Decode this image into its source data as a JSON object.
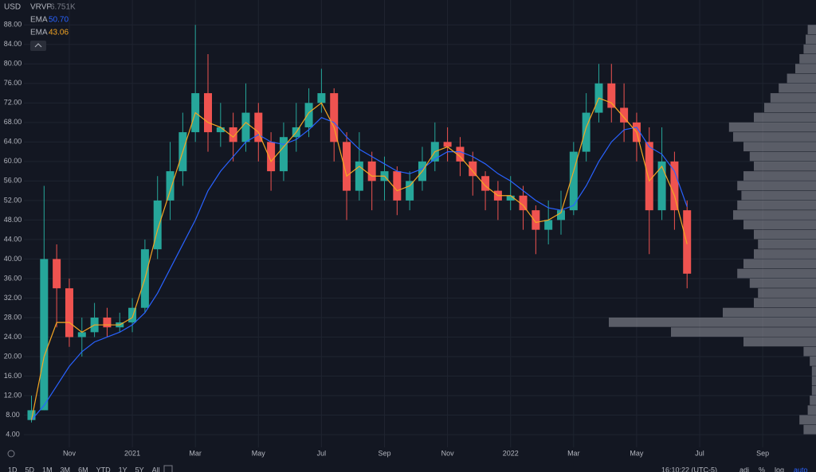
{
  "chart_data": {
    "type": "candlestick",
    "currency_label": "USD",
    "grid": true,
    "log_scale": false,
    "up_color": "#26a69a",
    "down_color": "#ef5350",
    "indicator_legend": {
      "name": "VRVP",
      "value_label": "6.751K"
    },
    "xlim": [
      0.56,
      25.69
    ],
    "xticks": [
      {
        "value": 2,
        "label": "Nov"
      },
      {
        "value": 4,
        "label": "2021"
      },
      {
        "value": 6,
        "label": "Mar"
      },
      {
        "value": 8,
        "label": "May"
      },
      {
        "value": 10,
        "label": "Jul"
      },
      {
        "value": 12,
        "label": "Sep"
      },
      {
        "value": 14,
        "label": "Nov"
      },
      {
        "value": 16,
        "label": "2022"
      },
      {
        "value": 18,
        "label": "Mar"
      },
      {
        "value": 20,
        "label": "May"
      },
      {
        "value": 22,
        "label": "Jul"
      },
      {
        "value": 24,
        "label": "Sep"
      }
    ],
    "ylim": [
      1.4,
      93.1
    ],
    "yticks": [
      {
        "value": 4,
        "label": "4.00"
      },
      {
        "value": 8,
        "label": "8.00"
      },
      {
        "value": 12,
        "label": "12.00"
      },
      {
        "value": 16,
        "label": "16.00"
      },
      {
        "value": 20,
        "label": "20.00"
      },
      {
        "value": 24,
        "label": "24.00"
      },
      {
        "value": 28,
        "label": "28.00"
      },
      {
        "value": 32,
        "label": "32.00"
      },
      {
        "value": 36,
        "label": "36.00"
      },
      {
        "value": 40,
        "label": "40.00"
      },
      {
        "value": 44,
        "label": "44.00"
      },
      {
        "value": 48,
        "label": "48.00"
      },
      {
        "value": 52,
        "label": "52.00"
      },
      {
        "value": 56,
        "label": "56.00"
      },
      {
        "value": 60,
        "label": "60.00"
      },
      {
        "value": 64,
        "label": "64.00"
      },
      {
        "value": 68,
        "label": "68.00"
      },
      {
        "value": 72,
        "label": "72.00"
      },
      {
        "value": 76,
        "label": "76.00"
      },
      {
        "value": 80,
        "label": "80.00"
      },
      {
        "value": 84,
        "label": "84.00"
      },
      {
        "value": 88,
        "label": "88.00"
      }
    ],
    "x": [
      0.8,
      1.2,
      1.6,
      2.0,
      2.4,
      2.8,
      3.2,
      3.6,
      4.0,
      4.4,
      4.8,
      5.2,
      5.6,
      6.0,
      6.4,
      6.8,
      7.2,
      7.6,
      8.0,
      8.4,
      8.8,
      9.2,
      9.6,
      10.0,
      10.4,
      10.8,
      11.2,
      11.6,
      12.0,
      12.4,
      12.8,
      13.2,
      13.6,
      14.0,
      14.4,
      14.8,
      15.2,
      15.6,
      16.0,
      16.4,
      16.8,
      17.2,
      17.6,
      18.0,
      18.4,
      18.8,
      19.2,
      19.6,
      20.0,
      20.4,
      20.8,
      21.2,
      21.6
    ],
    "open": [
      7,
      9,
      40,
      34,
      24,
      25,
      28,
      26,
      27,
      30,
      42,
      52,
      58,
      66,
      74,
      66,
      67,
      64,
      70,
      64,
      58,
      65,
      67,
      72,
      74,
      64,
      54,
      60,
      56,
      58,
      52,
      56,
      60,
      64,
      63,
      60,
      57,
      54,
      52,
      53,
      50,
      46,
      48,
      50,
      62,
      70,
      76,
      71,
      68,
      64,
      50,
      60,
      50
    ],
    "high": [
      12,
      55,
      43,
      36,
      28,
      31,
      30,
      29,
      32,
      44,
      57,
      64,
      70,
      88,
      82,
      72,
      70,
      76,
      72,
      66,
      68,
      72,
      75,
      79,
      75,
      66,
      66,
      62,
      61,
      59,
      58,
      63,
      68,
      67,
      65,
      62,
      58,
      56,
      57,
      55,
      51,
      52,
      54,
      64,
      74,
      80,
      80,
      76,
      70,
      67,
      67,
      62,
      52
    ],
    "low": [
      6.5,
      9,
      26,
      22,
      20,
      24,
      24,
      25,
      25,
      29,
      40,
      48,
      55,
      64,
      62,
      63,
      60,
      62,
      60,
      54,
      56,
      62,
      65,
      70,
      60,
      48,
      52,
      50,
      52,
      49,
      50,
      54,
      58,
      60,
      57,
      53,
      50,
      48,
      50,
      46,
      41,
      43,
      45,
      49,
      60,
      68,
      68,
      64,
      60,
      41,
      48,
      46,
      34
    ],
    "close": [
      9,
      40,
      34,
      24,
      25,
      28,
      26,
      27,
      30,
      42,
      52,
      58,
      66,
      74,
      66,
      67,
      64,
      70,
      64,
      58,
      65,
      67,
      72,
      74,
      64,
      54,
      60,
      56,
      58,
      52,
      56,
      60,
      64,
      63,
      60,
      57,
      54,
      52,
      53,
      50,
      46,
      48,
      50,
      62,
      70,
      76,
      71,
      68,
      64,
      50,
      60,
      50,
      37
    ],
    "series": [
      {
        "name": "EMA",
        "color": "#2962ff",
        "last_value_label": "50.70",
        "values": [
          7,
          10,
          14,
          18,
          21,
          23,
          24,
          25,
          26.5,
          29,
          33,
          38,
          43,
          48,
          54,
          58,
          61,
          64,
          65.5,
          64,
          63.5,
          64.5,
          66.5,
          69,
          68,
          65,
          62.5,
          61,
          59.5,
          58,
          57.5,
          58.5,
          60.5,
          62,
          62,
          61,
          59.5,
          57.5,
          56,
          54,
          52,
          50.5,
          50,
          51,
          55,
          60,
          64,
          66.5,
          67,
          63,
          61.5,
          58,
          50.7
        ]
      },
      {
        "name": "EMA",
        "color": "#f5a623",
        "last_value_label": "43.06",
        "values": [
          7,
          20,
          27,
          27,
          25,
          26.5,
          26.5,
          26.5,
          28,
          36,
          46,
          54,
          62,
          70,
          68,
          67,
          65,
          68,
          66,
          60,
          63,
          66,
          70,
          72,
          67,
          57,
          59,
          57,
          57,
          54,
          55,
          58,
          62,
          63,
          61,
          58,
          55,
          53,
          53,
          51,
          47.5,
          48,
          49.5,
          58,
          67,
          73,
          72,
          69,
          66,
          56,
          59,
          53,
          43.06
        ]
      }
    ],
    "profile": {
      "color": "#9598a1",
      "xlim": [
        0,
        100
      ],
      "bins": [
        4,
        6,
        8,
        10,
        12,
        14,
        16,
        18,
        20,
        22,
        24,
        26,
        28,
        30,
        32,
        34,
        36,
        38,
        40,
        42,
        44,
        46,
        48,
        50,
        52,
        54,
        56,
        58,
        60,
        62,
        64,
        66,
        68,
        70,
        72,
        74,
        76,
        78,
        80,
        82,
        84,
        86,
        88
      ],
      "volumes": [
        6,
        8,
        4,
        3,
        2,
        2,
        2,
        3,
        6,
        35,
        70,
        100,
        45,
        30,
        28,
        32,
        38,
        35,
        30,
        28,
        30,
        35,
        40,
        38,
        36,
        38,
        35,
        30,
        32,
        35,
        40,
        42,
        30,
        25,
        22,
        18,
        14,
        10,
        8,
        6,
        5,
        4
      ]
    },
    "toolbar": {
      "ranges": [
        "1D",
        "5D",
        "1M",
        "3M",
        "6M",
        "YTD",
        "1Y",
        "5Y",
        "All"
      ],
      "time": "16:10:22 (UTC-5)",
      "options": [
        "adj",
        "%",
        "log",
        "auto"
      ]
    }
  }
}
